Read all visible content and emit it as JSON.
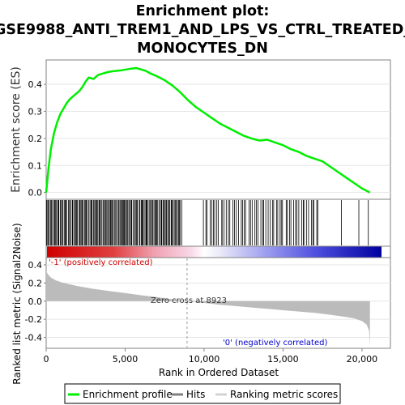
{
  "chart_data": {
    "type": "line",
    "title_lines": [
      "Enrichment plot:",
      "GSE9988_ANTI_TREM1_AND_LPS_VS_CTRL_TREATED_",
      "MONOCYTES_DN"
    ],
    "ylabel_top": "Enrichment score (ES)",
    "ylabel_bottom": "Ranked list metric (Signal2Noise)",
    "xlabel": "Rank in Ordered Dataset",
    "x_ticks": [
      0,
      5000,
      10000,
      15000,
      20000
    ],
    "x_tick_labels": [
      "0",
      "5,000",
      "10,000",
      "15,000",
      "20,000"
    ],
    "es_ticks": [
      0.0,
      0.1,
      0.2,
      0.3,
      0.4
    ],
    "es_tick_labels": [
      "0.0",
      "0.1",
      "0.2",
      "0.3",
      "0.4"
    ],
    "metric_ticks": [
      -0.4,
      -0.2,
      0.0,
      0.2,
      0.4
    ],
    "metric_tick_labels": [
      "-0.4",
      "-0.2",
      "0.0",
      "0.2",
      "0.4"
    ],
    "xlim": [
      0,
      21800
    ],
    "es_ylim": [
      -0.025,
      0.49
    ],
    "metric_ylim": [
      -0.52,
      0.48
    ],
    "es_curve": {
      "x": [
        0,
        150,
        300,
        500,
        700,
        900,
        1100,
        1300,
        1500,
        1700,
        1900,
        2100,
        2300,
        2500,
        2700,
        3000,
        3300,
        3600,
        3900,
        4200,
        4500,
        4800,
        5100,
        5400,
        5700,
        6000,
        6300,
        6600,
        7000,
        7500,
        8000,
        8500,
        9000,
        9500,
        10000,
        10500,
        11000,
        11500,
        12000,
        12500,
        13000,
        13500,
        14000,
        14500,
        15000,
        15500,
        16000,
        16500,
        17000,
        17500,
        18000,
        18500,
        19000,
        19500,
        20000,
        20500
      ],
      "y": [
        0.0,
        0.09,
        0.16,
        0.22,
        0.26,
        0.29,
        0.31,
        0.33,
        0.345,
        0.355,
        0.365,
        0.375,
        0.39,
        0.41,
        0.425,
        0.42,
        0.435,
        0.44,
        0.445,
        0.448,
        0.45,
        0.452,
        0.455,
        0.458,
        0.46,
        0.455,
        0.45,
        0.44,
        0.43,
        0.415,
        0.395,
        0.37,
        0.34,
        0.315,
        0.295,
        0.275,
        0.255,
        0.24,
        0.225,
        0.21,
        0.2,
        0.192,
        0.195,
        0.185,
        0.175,
        0.16,
        0.15,
        0.135,
        0.125,
        0.115,
        0.095,
        0.075,
        0.055,
        0.035,
        0.015,
        0.0
      ]
    },
    "hits_dense_regions": [
      {
        "from": 0,
        "to": 8600,
        "approx_count": 140
      },
      {
        "from": 9900,
        "to": 17300,
        "approx_count": 60
      }
    ],
    "hits_sparse": [
      18700,
      19800,
      20400
    ],
    "metric_curve": {
      "x": [
        0,
        100,
        300,
        600,
        1000,
        1500,
        2000,
        3000,
        4000,
        5000,
        6000,
        7000,
        8000,
        8923,
        10000,
        11000,
        12000,
        13000,
        14000,
        15000,
        16000,
        17000,
        18000,
        19000,
        19500,
        20000,
        20300,
        20450,
        20500
      ],
      "y": [
        0.33,
        0.3,
        0.26,
        0.23,
        0.205,
        0.185,
        0.165,
        0.135,
        0.11,
        0.09,
        0.065,
        0.045,
        0.02,
        0.0,
        -0.02,
        -0.04,
        -0.055,
        -0.07,
        -0.085,
        -0.1,
        -0.115,
        -0.13,
        -0.15,
        -0.175,
        -0.19,
        -0.22,
        -0.26,
        -0.33,
        -0.5
      ]
    },
    "zero_cross_label": "Zero cross at 8923",
    "zero_cross_x": 8923,
    "pos_label": "'-1' (positively correlated)",
    "neg_label": "'0' (negatively correlated)",
    "dataset_length": 20500,
    "legend": [
      {
        "label": "Enrichment profile",
        "color": "#00ee00"
      },
      {
        "label": "Hits",
        "color": "#808080"
      },
      {
        "label": "Ranking metric scores",
        "color": "#d3d3d3"
      }
    ],
    "colors": {
      "es_line": "#00ee00",
      "metric_fill": "#bbbbbb",
      "pos_text": "#cc0000",
      "neg_text": "#0000cc",
      "frame": "#808080"
    }
  }
}
